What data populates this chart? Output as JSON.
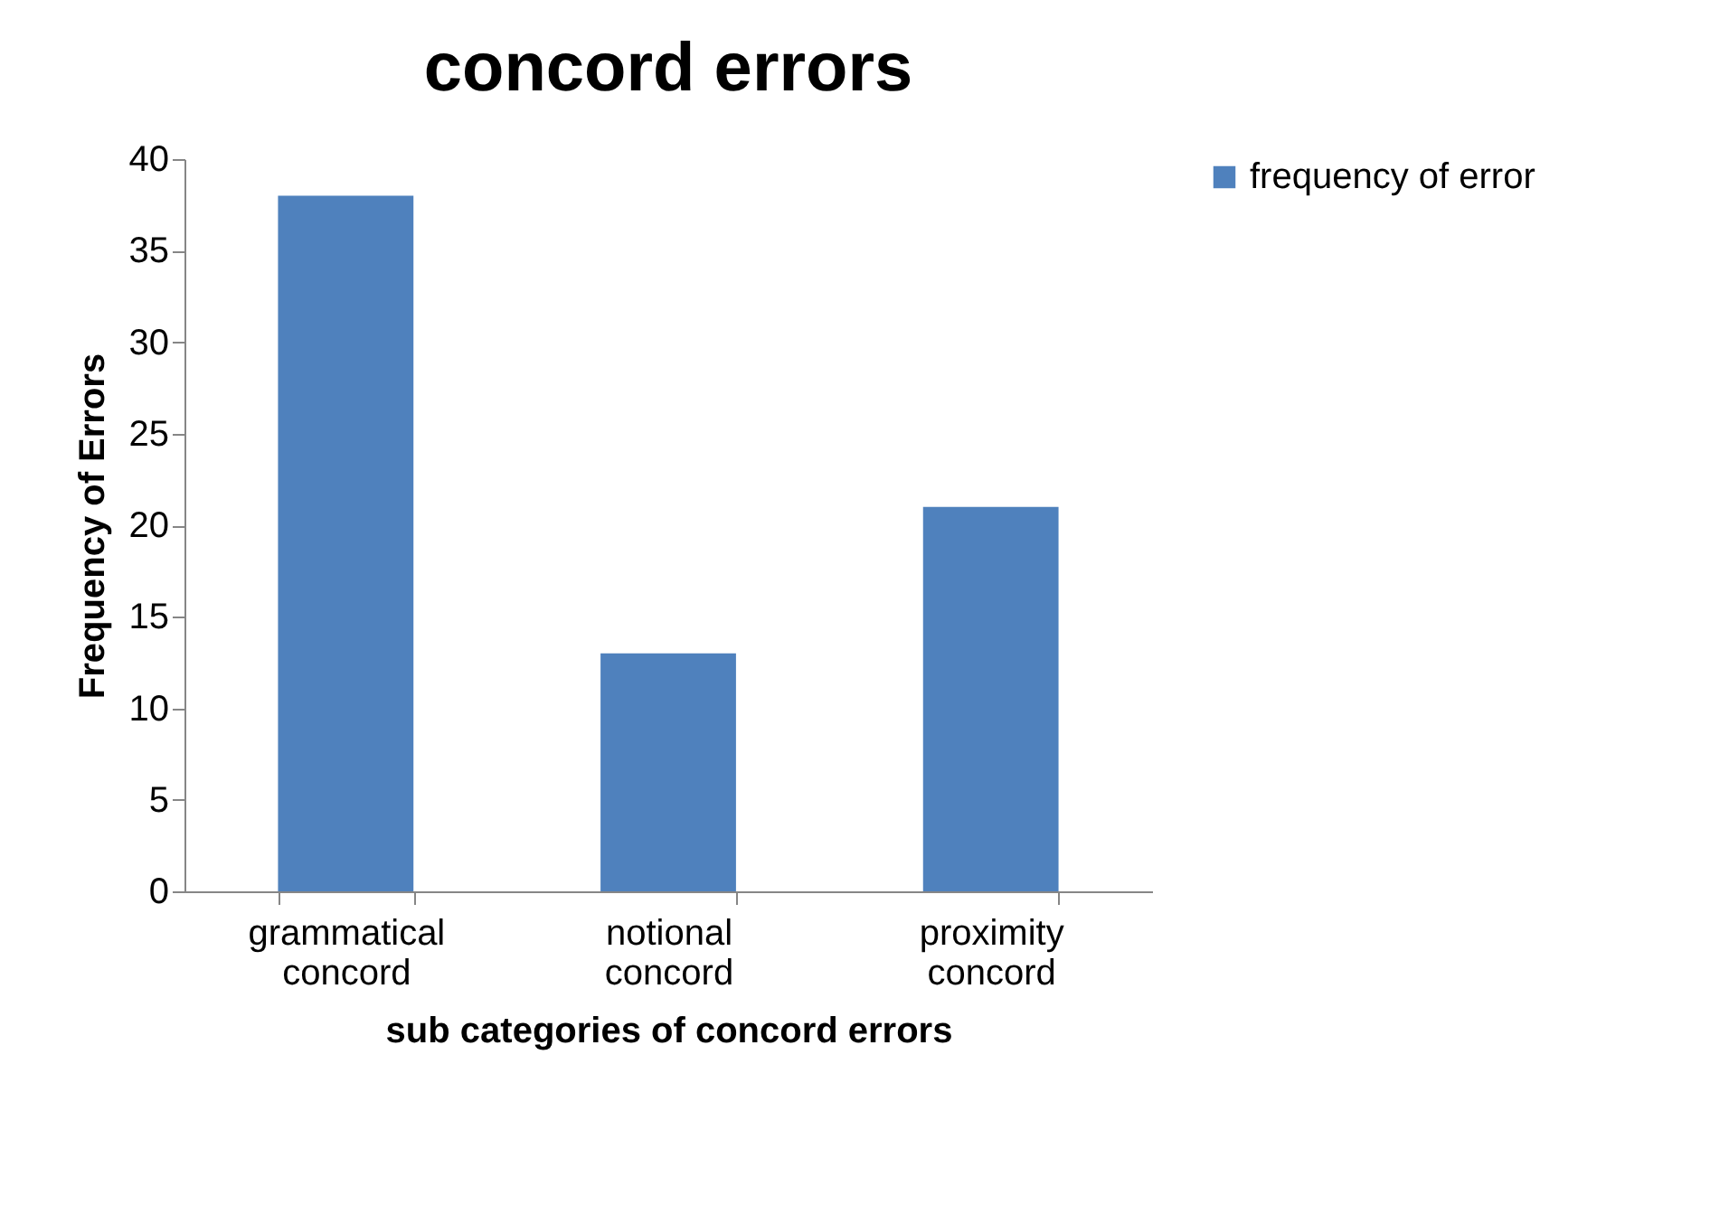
{
  "chart_data": {
    "type": "bar",
    "title": "concord errors",
    "xlabel": "sub categories of concord errors",
    "ylabel": "Frequency of Errors",
    "categories": [
      "grammatical concord",
      "notional concord",
      "proximity concord"
    ],
    "series": [
      {
        "name": "frequency of error",
        "color": "#4f81bd",
        "values": [
          38,
          13,
          21
        ]
      }
    ],
    "ylim": [
      0,
      40
    ],
    "yticks": [
      0,
      5,
      10,
      15,
      20,
      25,
      30,
      35,
      40
    ],
    "grid": false,
    "legend": "right"
  }
}
